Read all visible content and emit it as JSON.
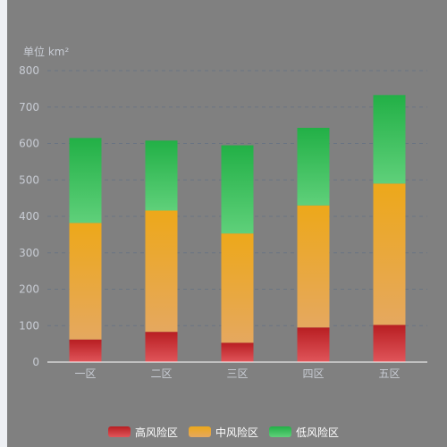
{
  "chart_data": {
    "type": "bar",
    "stacked": true,
    "unit_label": "单位 km²",
    "categories": [
      "一区",
      "二区",
      "三区",
      "四区",
      "五区"
    ],
    "series": [
      {
        "name": "高风险区",
        "values": [
          62,
          83,
          53,
          95,
          102
        ],
        "color_top": "#b81e22",
        "color_bottom": "#e0555a"
      },
      {
        "name": "中风险区",
        "values": [
          320,
          333,
          300,
          335,
          388
        ],
        "color_top": "#eda81a",
        "color_bottom": "#e5a85f"
      },
      {
        "name": "低风险区",
        "values": [
          233,
          192,
          242,
          213,
          243
        ],
        "color_top": "#22b046",
        "color_bottom": "#5fd07a"
      }
    ],
    "ylim": [
      0,
      800
    ],
    "yticks": [
      "0",
      "100",
      "200",
      "300",
      "400",
      "500",
      "600",
      "700",
      "800"
    ],
    "grid": true,
    "legend_position": "bottom"
  },
  "colors": {
    "axis_text": "#c8ccd4",
    "grid": "#6a7482",
    "axis_line": "#ffffff"
  }
}
